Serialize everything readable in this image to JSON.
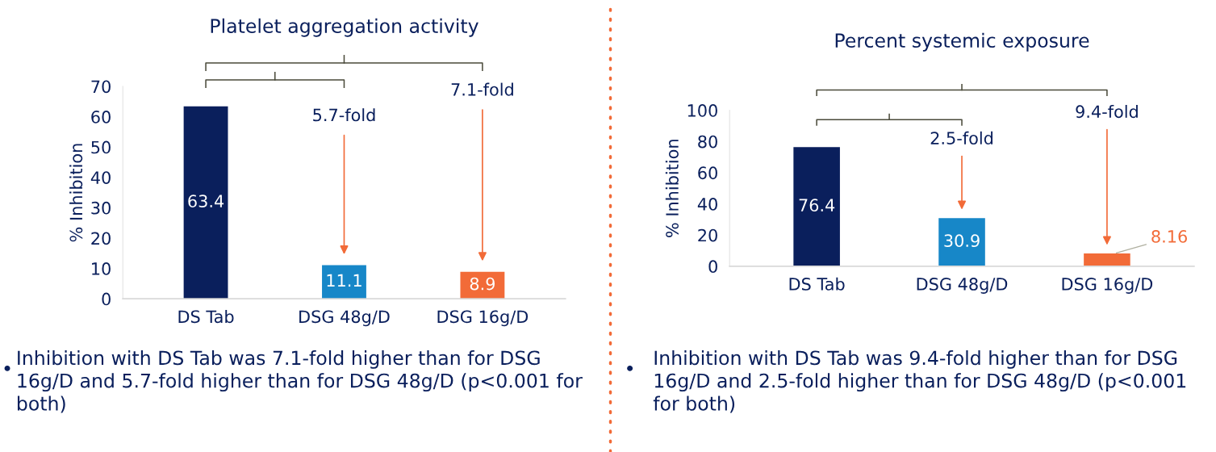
{
  "chart_data": [
    {
      "type": "bar",
      "title": "Platelet aggregation activity",
      "ylabel": "% Inhibition",
      "categories": [
        "DS Tab",
        "DSG 48g/D",
        "DSG 16g/D"
      ],
      "values": [
        63.4,
        11.1,
        8.9
      ],
      "colors": [
        "#0a1f5c",
        "#1787c8",
        "#f26b38"
      ],
      "ylim": [
        0,
        70
      ],
      "yticks": [
        0,
        10,
        20,
        30,
        40,
        50,
        60,
        70
      ],
      "data_labels": true,
      "annotations": [
        "5.7-fold",
        "7.1-fold",
        "Inhibition with DS Tab was 7.1-fold higher than for DSG 16g/D and 5.7-fold higher than for DSG 48g/D (p<0.001 for both)"
      ]
    },
    {
      "type": "bar",
      "title": "Percent systemic exposure",
      "ylabel": "% Inhibition",
      "categories": [
        "DS Tab",
        "DSG 48g/D",
        "DSG 16g/D"
      ],
      "values": [
        76.4,
        30.9,
        8.16
      ],
      "colors": [
        "#0a1f5c",
        "#1787c8",
        "#f26b38"
      ],
      "ylim": [
        0,
        100
      ],
      "yticks": [
        0,
        20,
        40,
        60,
        80,
        100
      ],
      "data_labels": true,
      "annotations": [
        "2.5-fold",
        "9.4-fold",
        "Inhibition with DS Tab was 9.4-fold higher than for DSG 16g/D and 2.5-fold higher than for DSG 48g/D (p<0.001 for both)"
      ]
    }
  ]
}
